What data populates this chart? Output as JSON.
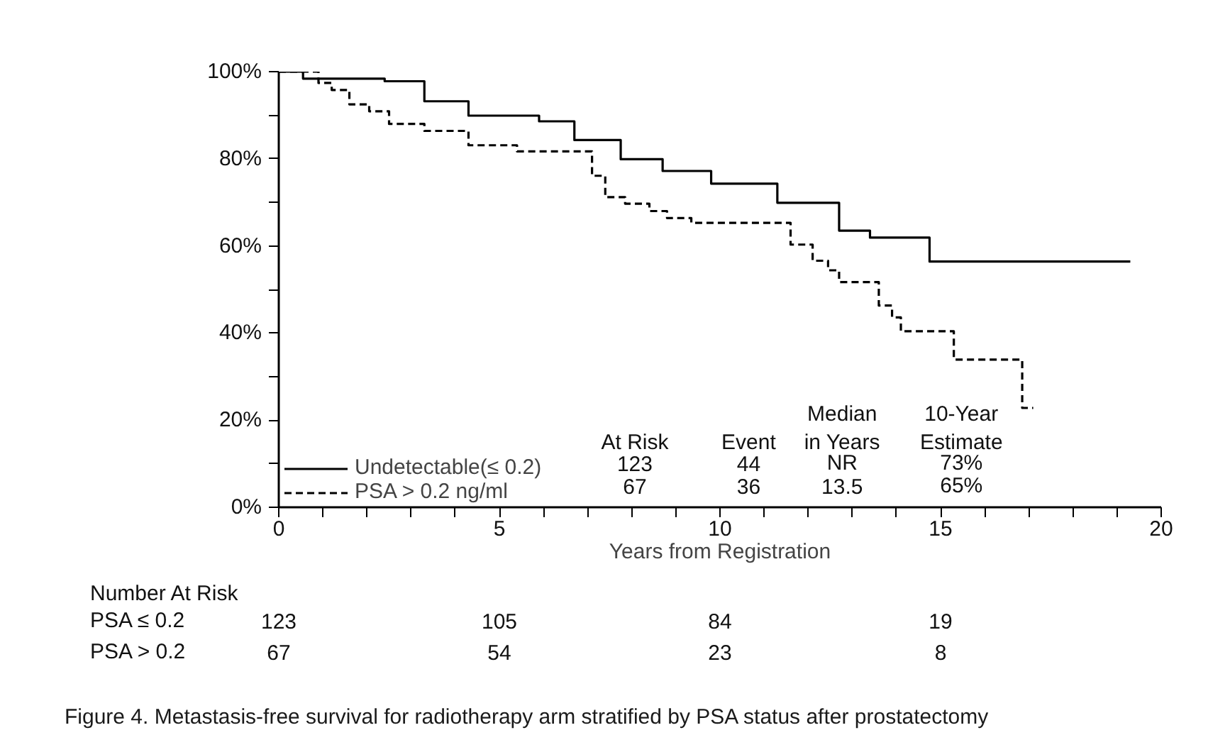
{
  "chart_data": {
    "type": "step",
    "xlabel": "Years from Registration",
    "xlim": [
      0,
      20
    ],
    "xticks": [
      0,
      {
        "value": 1,
        "label": null
      },
      {
        "value": 2,
        "label": null
      },
      {
        "value": 3,
        "label": null
      },
      {
        "value": 4,
        "label": null
      },
      5,
      {
        "value": 6,
        "label": null
      },
      {
        "value": 7,
        "label": null
      },
      {
        "value": 8,
        "label": null
      },
      {
        "value": 9,
        "label": null
      },
      10,
      {
        "value": 11,
        "label": null
      },
      {
        "value": 12,
        "label": null
      },
      {
        "value": 13,
        "label": null
      },
      {
        "value": 14,
        "label": null
      },
      15,
      {
        "value": 16,
        "label": null
      },
      {
        "value": 17,
        "label": null
      },
      {
        "value": 18,
        "label": null
      },
      {
        "value": 19,
        "label": null
      },
      20
    ],
    "ylim": [
      0,
      100
    ],
    "yticks": [
      {
        "value": 0,
        "label": "0%"
      },
      {
        "value": 10,
        "label": null
      },
      {
        "value": 20,
        "label": "20%"
      },
      {
        "value": 30,
        "label": null
      },
      {
        "value": 40,
        "label": "40%"
      },
      {
        "value": 50,
        "label": null
      },
      {
        "value": 60,
        "label": "60%"
      },
      {
        "value": 70,
        "label": null
      },
      {
        "value": 80,
        "label": "80%"
      },
      {
        "value": 90,
        "label": null
      },
      {
        "value": 100,
        "label": "100%"
      }
    ],
    "grid": false,
    "legend": "bottom left",
    "series": [
      {
        "name": "Undetectable(≤ 0.2)",
        "color": "#000000",
        "line_style": "solid",
        "x": [
          0,
          0.55,
          2.4,
          3.3,
          4.3,
          5.9,
          6.7,
          7.75,
          8.7,
          9.8,
          11.3,
          12.7,
          13.4,
          14.75,
          19.3
        ],
        "values": [
          100,
          98.4,
          97.8,
          93.2,
          89.9,
          88.6,
          84.3,
          79.9,
          77.2,
          74.3,
          69.9,
          63.5,
          61.9,
          56.4,
          56.4
        ]
      },
      {
        "name": "PSA > 0.2 ng/ml",
        "color": "#000000",
        "line_style": "dashed",
        "x": [
          0,
          0.9,
          1.2,
          1.6,
          2.05,
          2.5,
          3.3,
          4.3,
          5.4,
          7.1,
          7.4,
          7.85,
          8.4,
          8.8,
          9.35,
          11.6,
          12.1,
          12.45,
          12.7,
          13.6,
          13.9,
          14.1,
          15.3,
          16.85,
          17.1
        ],
        "values": [
          100,
          97.4,
          95.8,
          92.5,
          90.9,
          88,
          86.4,
          83.1,
          81.7,
          76.1,
          71.2,
          69.7,
          68,
          66.4,
          65.3,
          60.3,
          56.6,
          54.4,
          51.7,
          46.3,
          43.6,
          40.4,
          33.9,
          22.8,
          22.8
        ]
      }
    ],
    "annotations": [
      "At Risk",
      "Event",
      "Median\nin Years",
      "10-Year\nEstimate",
      "123",
      "44",
      "NR",
      "73%",
      "67",
      "36",
      "13.5",
      "65%",
      "Number At Risk",
      "PSA ≤ 0.2",
      "123",
      "105",
      "84",
      "19",
      "PSA > 0.2",
      "67",
      "54",
      "23",
      "8",
      "Figure 4. Metastasis-free survival for radiotherapy arm stratified by PSA status after prostatectomy"
    ]
  }
}
